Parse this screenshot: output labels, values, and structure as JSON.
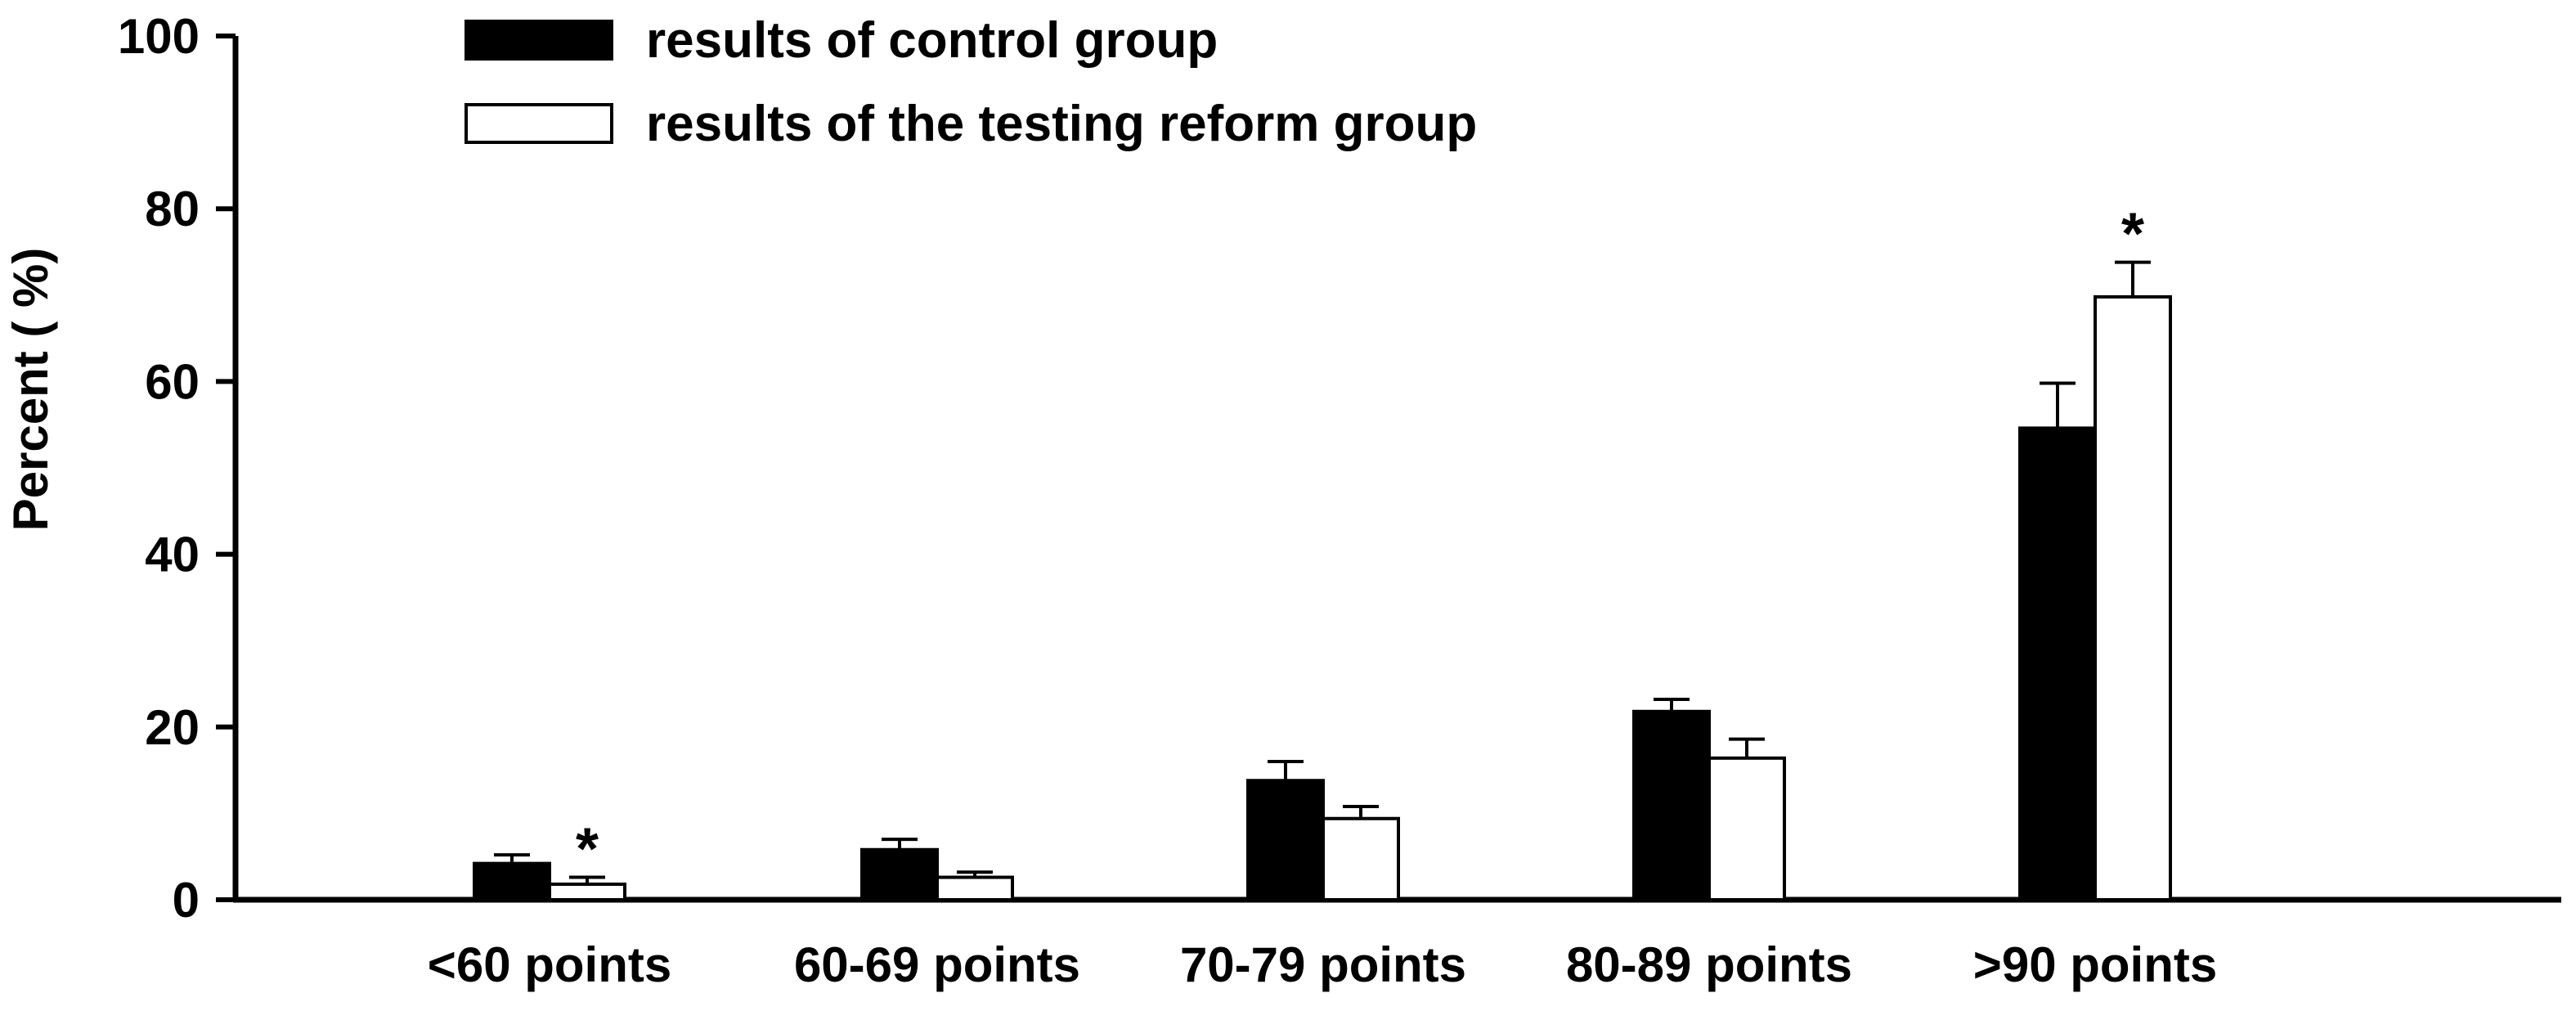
{
  "chart_data": {
    "type": "bar",
    "title": "",
    "xlabel": "",
    "ylabel": "Percent ( %)",
    "ylim": [
      0,
      100
    ],
    "yticks": [
      0,
      20,
      40,
      60,
      80,
      100
    ],
    "grid": false,
    "legend_position": "top-left",
    "categories": [
      "<60 points",
      "60-69 points",
      "70-79 points",
      "80-89 points",
      ">90 points"
    ],
    "series": [
      {
        "name": "results of control group",
        "color": "#000000",
        "values": [
          4.2,
          5.8,
          13.8,
          21.8,
          54.6
        ],
        "errors": [
          1.0,
          1.2,
          2.2,
          1.4,
          5.2
        ]
      },
      {
        "name": "results of the testing reform group",
        "color": "#ffffff",
        "values": [
          1.8,
          2.6,
          9.4,
          16.4,
          69.8
        ],
        "errors": [
          0.8,
          0.6,
          1.4,
          2.2,
          4.0
        ]
      }
    ],
    "annotations": [
      {
        "category_index": 0,
        "series_index": 1,
        "text": "*"
      },
      {
        "category_index": 4,
        "series_index": 1,
        "text": "*"
      }
    ]
  }
}
